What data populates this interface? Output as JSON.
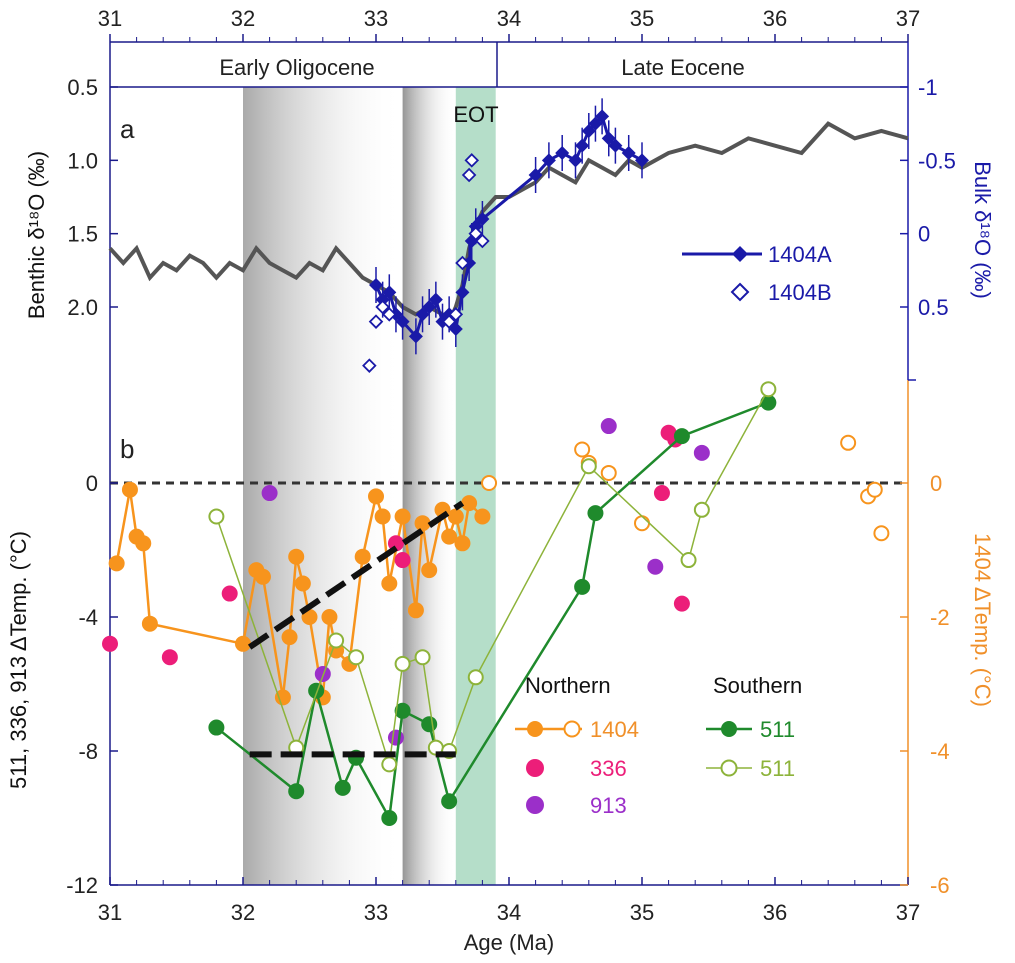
{
  "chart_data": [
    {
      "panel": "a",
      "type": "line",
      "panel_label": "a",
      "top_axis": {
        "range": [
          31,
          37
        ],
        "ticks": [
          "31",
          "32",
          "33",
          "34",
          "35",
          "36",
          "37"
        ]
      },
      "eras": [
        {
          "label": "Early Oligocene",
          "x_range": [
            31,
            33.9
          ]
        },
        {
          "label": "Late Eocene",
          "x_range": [
            33.9,
            37
          ]
        }
      ],
      "annotation": "EOT",
      "left_axis": {
        "label": "Benthic δ¹⁸O (‰)",
        "range": [
          0.5,
          2.5
        ],
        "reversed": true,
        "ticks": [
          "0.5",
          "1.0",
          "1.5",
          "2.0"
        ]
      },
      "right_axis": {
        "label": "Bulk δ¹⁸O (‰)",
        "range": [
          -1,
          1
        ],
        "reversed": true,
        "ticks": [
          "-1",
          "-0.5",
          "0",
          "0.5"
        ],
        "color": "#1a1aa8"
      },
      "series": [
        {
          "name": "",
          "axis": "left",
          "color": "#555555",
          "x": [
            31.0,
            31.1,
            31.2,
            31.3,
            31.4,
            31.5,
            31.6,
            31.7,
            31.8,
            31.9,
            32.0,
            32.1,
            32.2,
            32.3,
            32.4,
            32.5,
            32.6,
            32.7,
            32.8,
            32.9,
            33.0,
            33.1,
            33.2,
            33.3,
            33.4,
            33.5,
            33.55,
            33.6,
            33.65,
            33.7,
            33.75,
            33.8,
            33.85,
            33.9,
            34.0,
            34.1,
            34.2,
            34.3,
            34.4,
            34.5,
            34.6,
            34.7,
            34.8,
            34.9,
            35.0,
            35.2,
            35.4,
            35.6,
            35.8,
            36.0,
            36.2,
            36.4,
            36.6,
            36.8,
            37.0
          ],
          "values": [
            1.6,
            1.7,
            1.6,
            1.8,
            1.7,
            1.75,
            1.65,
            1.7,
            1.8,
            1.7,
            1.75,
            1.6,
            1.7,
            1.75,
            1.8,
            1.7,
            1.75,
            1.6,
            1.7,
            1.8,
            1.85,
            1.9,
            2.0,
            2.05,
            2.0,
            2.05,
            2.1,
            2.0,
            1.85,
            1.6,
            1.45,
            1.35,
            1.3,
            1.25,
            1.25,
            1.2,
            1.15,
            1.05,
            1.1,
            1.15,
            1.0,
            1.05,
            1.1,
            1.0,
            1.05,
            0.95,
            0.9,
            0.95,
            0.85,
            0.9,
            0.95,
            0.75,
            0.85,
            0.8,
            0.85
          ]
        },
        {
          "name": "1404A",
          "axis": "right",
          "color": "#1a1aa8",
          "marker": "diamond-filled",
          "x": [
            33.0,
            33.05,
            33.1,
            33.15,
            33.2,
            33.3,
            33.35,
            33.4,
            33.45,
            33.5,
            33.55,
            33.6,
            33.65,
            33.7,
            33.72,
            33.75,
            33.8,
            34.2,
            34.3,
            34.4,
            34.5,
            34.55,
            34.6,
            34.65,
            34.7,
            34.75,
            34.8,
            34.9,
            35.0
          ],
          "values": [
            0.35,
            0.45,
            0.4,
            0.55,
            0.6,
            0.7,
            0.55,
            0.5,
            0.45,
            0.6,
            0.55,
            0.65,
            0.4,
            0.2,
            0.05,
            -0.05,
            -0.1,
            -0.4,
            -0.5,
            -0.55,
            -0.5,
            -0.6,
            -0.7,
            -0.75,
            -0.8,
            -0.65,
            -0.6,
            -0.55,
            -0.5
          ]
        },
        {
          "name": "1404B",
          "axis": "right",
          "color": "#1a1aa8",
          "marker": "diamond-open",
          "x": [
            32.95,
            33.0,
            33.05,
            33.1,
            33.55,
            33.6,
            33.65,
            33.7,
            33.72,
            33.75,
            33.8
          ],
          "values": [
            0.9,
            0.6,
            0.5,
            0.55,
            0.6,
            0.55,
            0.2,
            -0.4,
            -0.5,
            0.0,
            0.05
          ]
        }
      ],
      "legend": [
        "1404A",
        "1404B"
      ]
    },
    {
      "panel": "b",
      "type": "scatter",
      "panel_label": "b",
      "x_axis": {
        "label": "Age (Ma)",
        "range": [
          31,
          37
        ],
        "ticks": [
          "31",
          "32",
          "33",
          "34",
          "35",
          "36",
          "37"
        ]
      },
      "left_axis": {
        "label": "511, 336, 913 ΔTemp. (°C)",
        "range": [
          -12,
          2.2
        ],
        "ticks": [
          "-12",
          "-8",
          "-4",
          "0"
        ]
      },
      "right_axis": {
        "label": "1404 ΔTemp. (°C)",
        "range": [
          -6,
          1.1
        ],
        "ticks": [
          "-6",
          "-4",
          "-2",
          "0"
        ],
        "color": "#f0902a"
      },
      "shading": [
        {
          "kind": "gray-gradient",
          "x_range": [
            32.0,
            33.2
          ]
        },
        {
          "kind": "gray-gradient",
          "x_range": [
            33.2,
            33.6
          ]
        },
        {
          "kind": "eot-green",
          "x_range": [
            33.6,
            33.9
          ]
        }
      ],
      "zero_line": 0,
      "trend_lines": [
        {
          "from": [
            32.05,
            -4.9
          ],
          "to": [
            33.65,
            -0.6
          ],
          "axis": "left"
        },
        {
          "from": [
            32.05,
            -8.1
          ],
          "to": [
            33.6,
            -8.1
          ],
          "axis": "left"
        }
      ],
      "legend_groups": [
        {
          "title": "Northern",
          "items": [
            "1404",
            "336",
            "913"
          ]
        },
        {
          "title": "Southern",
          "items": [
            "511",
            "511"
          ]
        }
      ],
      "series": [
        {
          "name": "1404",
          "axis": "right",
          "color": "#f7941d",
          "marker": "filled",
          "connected": true,
          "x": [
            31.05,
            31.15,
            31.2,
            31.25,
            31.3,
            32.0,
            32.1,
            32.15,
            32.3,
            32.35,
            32.4,
            32.45,
            32.5,
            32.6,
            32.65,
            32.7,
            32.8,
            32.9,
            33.0,
            33.05,
            33.1,
            33.2,
            33.3,
            33.35,
            33.4,
            33.5,
            33.55,
            33.6,
            33.65,
            33.7,
            33.8
          ],
          "values": [
            -1.2,
            -0.1,
            -0.8,
            -0.9,
            -2.1,
            -2.4,
            -1.3,
            -1.4,
            -3.2,
            -2.3,
            -1.1,
            -1.5,
            -2.0,
            -3.2,
            -2.0,
            -2.5,
            -2.7,
            -1.1,
            -0.2,
            -0.5,
            -1.5,
            -0.5,
            -1.9,
            -0.6,
            -1.3,
            -0.4,
            -0.8,
            -0.5,
            -0.9,
            -0.3,
            -0.5
          ]
        },
        {
          "name": "1404",
          "axis": "right",
          "color": "#f7941d",
          "marker": "open",
          "x": [
            33.85,
            34.55,
            34.6,
            34.75,
            35.0,
            36.55,
            36.7,
            36.75,
            36.8
          ],
          "values": [
            0.0,
            0.5,
            0.3,
            0.15,
            -0.6,
            0.6,
            -0.2,
            -0.1,
            -0.75
          ]
        },
        {
          "name": "336",
          "axis": "left",
          "color": "#ec1e79",
          "marker": "filled",
          "x": [
            31.0,
            31.45,
            31.9,
            33.15,
            33.2,
            35.15,
            35.2,
            35.25,
            35.3
          ],
          "values": [
            -4.8,
            -5.2,
            -3.3,
            -1.8,
            -2.3,
            -0.3,
            1.5,
            1.3,
            -3.6
          ]
        },
        {
          "name": "913",
          "axis": "left",
          "color": "#9b2fc9",
          "marker": "filled",
          "x": [
            32.2,
            32.6,
            33.15,
            34.75,
            35.1,
            35.45
          ],
          "values": [
            -0.3,
            -5.7,
            -7.6,
            1.7,
            -2.5,
            0.9
          ]
        },
        {
          "name": "511",
          "axis": "left",
          "color": "#1f8a2c",
          "marker": "filled",
          "connected": true,
          "x": [
            31.8,
            32.4,
            32.55,
            32.75,
            32.85,
            33.1,
            33.2,
            33.4,
            33.55,
            34.55,
            34.65,
            35.3,
            35.95
          ],
          "values": [
            -7.3,
            -9.2,
            -6.2,
            -9.1,
            -8.2,
            -10.0,
            -6.8,
            -7.2,
            -9.5,
            -3.1,
            -0.9,
            1.4,
            2.4
          ]
        },
        {
          "name": "511",
          "axis": "left",
          "color": "#8db33a",
          "marker": "open",
          "connected": true,
          "x": [
            31.8,
            32.4,
            32.7,
            32.85,
            33.1,
            33.2,
            33.35,
            33.45,
            33.55,
            33.75,
            34.6,
            35.35,
            35.45,
            35.95
          ],
          "values": [
            -1.0,
            -7.9,
            -4.7,
            -5.2,
            -8.4,
            -5.4,
            -5.2,
            -7.9,
            -8.0,
            -5.8,
            0.5,
            -2.3,
            -0.8,
            2.8
          ]
        }
      ]
    }
  ]
}
